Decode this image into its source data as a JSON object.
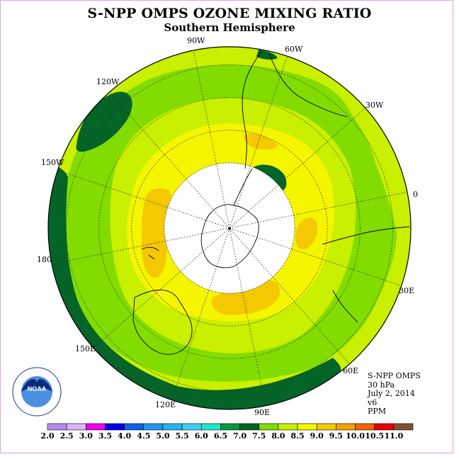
{
  "title": "S-NPP OMPS OZONE MIXING RATIO",
  "subtitle": "Southern Hemisphere",
  "longitude_labels": [
    "90W",
    "60W",
    "30W",
    "0",
    "30E",
    "60E",
    "90E",
    "120E",
    "150E",
    "180",
    "150W",
    "120W"
  ],
  "info": {
    "instrument": "S-NPP OMPS",
    "level": "30 hPa",
    "date": "July 2, 2014",
    "version": "v6",
    "units": "PPM"
  },
  "logo_text": "NOAA",
  "colorbar": {
    "ticks": [
      "2.0",
      "2.5",
      "3.0",
      "3.5",
      "4.0",
      "4.5",
      "5.0",
      "5.5",
      "6.0",
      "6.5",
      "7.0",
      "7.5",
      "8.0",
      "8.5",
      "9.0",
      "9.5",
      "10.0",
      "10.5",
      "11.0"
    ],
    "colors": [
      "#b48cf0",
      "#dcb4f5",
      "#f000f0",
      "#0000e6",
      "#0a64e6",
      "#1e96f0",
      "#28b4f0",
      "#3ccdf5",
      "#1ee6c8",
      "#0a9641",
      "#056428",
      "#82dc00",
      "#c8f000",
      "#f5f500",
      "#f5c800",
      "#f5a000",
      "#f06400",
      "#e60000",
      "#825032"
    ]
  },
  "map_colors": {
    "dark_green": "#056428",
    "green": "#82dc00",
    "yellow_green": "#c8f000",
    "yellow": "#f5f500",
    "gold": "#f5c800",
    "no_data": "#ffffff"
  }
}
